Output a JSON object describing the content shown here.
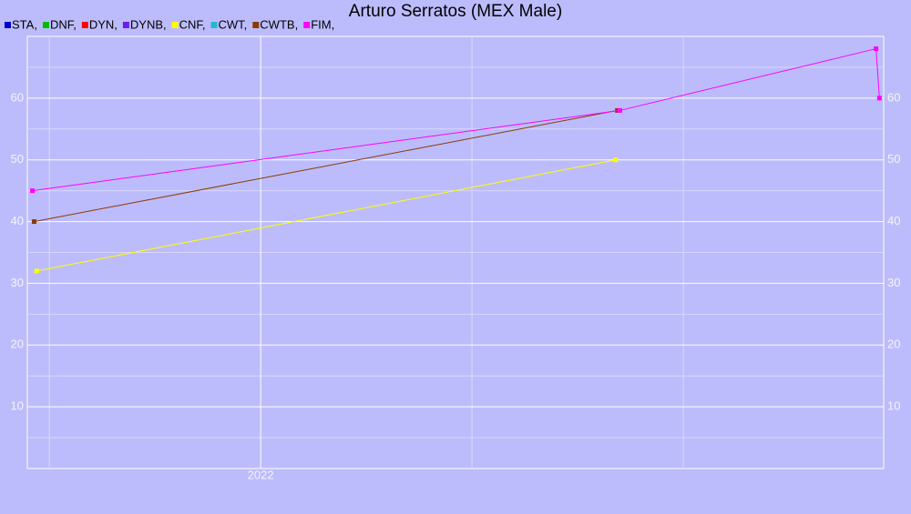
{
  "chart_data": {
    "type": "line",
    "title": "Arturo Serratos (MEX Male)",
    "series": [
      {
        "name": "STA,",
        "color": "#0000cc",
        "x": [],
        "values": []
      },
      {
        "name": "DNF,",
        "color": "#00bb00",
        "x": [],
        "values": []
      },
      {
        "name": "DYN,",
        "color": "#ff0000",
        "x": [],
        "values": []
      },
      {
        "name": "DYNB,",
        "color": "#6a1cf0",
        "x": [],
        "values": []
      },
      {
        "name": "CNF,",
        "color": "#ffff00",
        "x": [
          2021.735,
          2022.42
        ],
        "values": [
          32,
          50
        ]
      },
      {
        "name": "CWT,",
        "color": "#22b8cc",
        "x": [],
        "values": []
      },
      {
        "name": "CWTB,",
        "color": "#8b3a00",
        "x": [
          2021.732,
          2022.422
        ],
        "values": [
          40,
          58
        ]
      },
      {
        "name": "FIM,",
        "color": "#ff00ff",
        "x": [
          2021.73,
          2022.425,
          2022.728,
          2022.732
        ],
        "values": [
          45,
          58,
          68,
          60
        ]
      }
    ],
    "xlim": [
      2021.724,
      2022.737
    ],
    "xticks": [
      {
        "value": 2022,
        "label": "2022"
      }
    ],
    "xminor": [
      2021.75,
      2022.25,
      2022.5
    ],
    "ylim": [
      0,
      70
    ],
    "yticks": [
      10,
      20,
      30,
      40,
      50,
      60
    ],
    "yminor": [
      5,
      15,
      25,
      35,
      45,
      55,
      65
    ],
    "grid": true,
    "right_axis": true
  }
}
